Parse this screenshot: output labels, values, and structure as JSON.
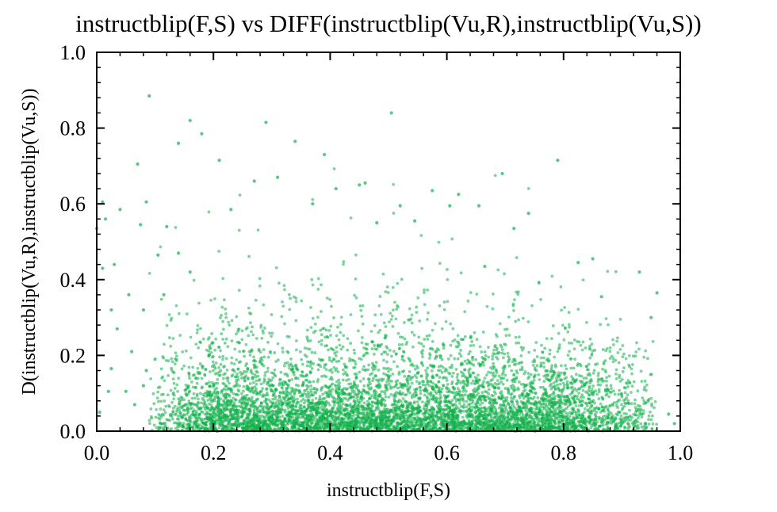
{
  "chart_data": {
    "type": "scatter",
    "title": "instructblip(F,S) vs DIFF(instructblip(Vu,R),instructblip(Vu,S))",
    "xlabel": "instructblip(F,S)",
    "ylabel": "D(instructblip(Vu,R),instructblip(Vu,S))",
    "xlim": [
      0.0,
      1.0
    ],
    "ylim": [
      0.0,
      1.0
    ],
    "xticks": [
      "0.0",
      "0.2",
      "0.4",
      "0.6",
      "0.8",
      "1.0"
    ],
    "yticks": [
      "0.0",
      "0.2",
      "0.4",
      "0.6",
      "0.8",
      "1.0"
    ],
    "grid": false,
    "legend": "none",
    "marker_color": "#14b04c",
    "series": [
      {
        "points": [
          [
            0.09,
            0.885
          ],
          [
            0.505,
            0.84
          ],
          [
            0.16,
            0.82
          ],
          [
            0.29,
            0.815
          ],
          [
            0.18,
            0.785
          ],
          [
            0.34,
            0.765
          ],
          [
            0.14,
            0.76
          ],
          [
            0.39,
            0.73
          ],
          [
            0.07,
            0.705
          ],
          [
            0.21,
            0.715
          ],
          [
            0.79,
            0.715
          ],
          [
            0.695,
            0.68
          ],
          [
            0.31,
            0.67
          ],
          [
            0.27,
            0.66
          ],
          [
            0.46,
            0.655
          ],
          [
            0.01,
            0.605
          ],
          [
            0.04,
            0.585
          ],
          [
            0.085,
            0.605
          ],
          [
            0.23,
            0.585
          ],
          [
            0.575,
            0.635
          ],
          [
            0.62,
            0.625
          ],
          [
            0.52,
            0.595
          ],
          [
            0.655,
            0.595
          ],
          [
            0.605,
            0.595
          ],
          [
            0.74,
            0.575
          ],
          [
            0.075,
            0.545
          ],
          [
            0.48,
            0.55
          ],
          [
            0.715,
            0.535
          ],
          [
            0.12,
            0.54
          ],
          [
            0.0,
            0.535
          ],
          [
            0.03,
            0.44
          ],
          [
            0.01,
            0.43
          ],
          [
            0.825,
            0.445
          ],
          [
            0.85,
            0.455
          ],
          [
            0.665,
            0.435
          ],
          [
            0.93,
            0.42
          ],
          [
            0.96,
            0.365
          ],
          [
            0.95,
            0.3
          ],
          [
            0.025,
            0.32
          ],
          [
            0.08,
            0.32
          ],
          [
            0.115,
            0.36
          ],
          [
            0.16,
            0.42
          ],
          [
            0.035,
            0.27
          ],
          [
            0.06,
            0.21
          ],
          [
            0.025,
            0.165
          ],
          [
            0.08,
            0.12
          ],
          [
            0.02,
            0.105
          ],
          [
            0.065,
            0.07
          ],
          [
            0.005,
            0.05
          ],
          [
            0.98,
            0.045
          ],
          [
            0.945,
            0.08
          ],
          [
            0.99,
            0.02
          ],
          [
            0.1,
            0.19
          ],
          [
            0.05,
            0.105
          ],
          [
            0.085,
            0.16
          ],
          [
            0.14,
            0.47
          ],
          [
            0.105,
            0.465
          ],
          [
            0.545,
            0.555
          ],
          [
            0.37,
            0.6
          ],
          [
            0.41,
            0.64
          ],
          [
            0.45,
            0.65
          ],
          [
            0.015,
            0.56
          ],
          [
            0.055,
            0.36
          ],
          [
            0.865,
            0.355
          ]
        ]
      }
    ]
  }
}
